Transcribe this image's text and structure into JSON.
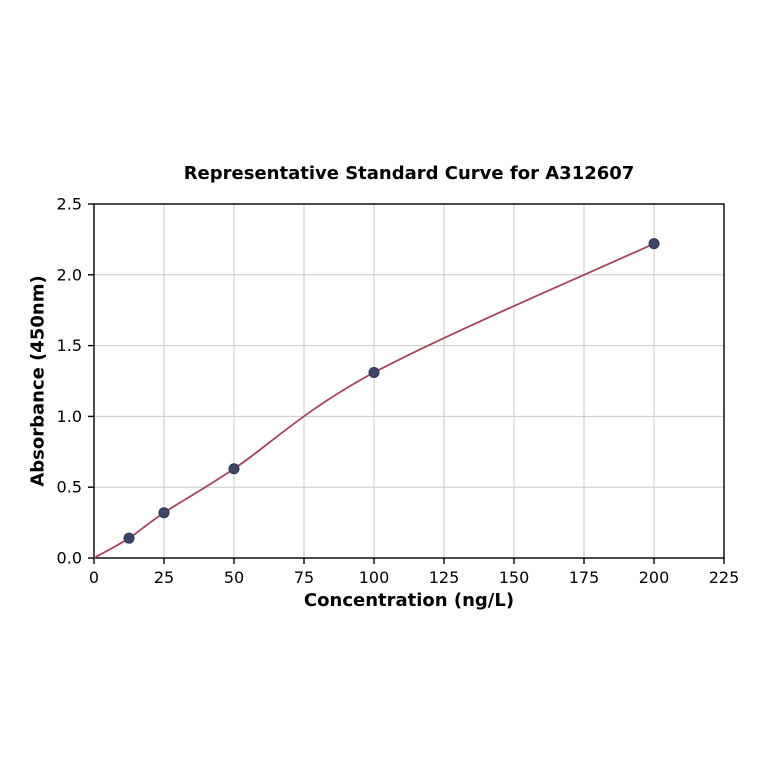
{
  "chart_data": {
    "type": "scatter",
    "title": "Representative Standard Curve for A312607",
    "xlabel": "Concentration (ng/L)",
    "ylabel": "Absorbance (450nm)",
    "xlim": [
      0,
      225
    ],
    "ylim": [
      0,
      2.5
    ],
    "grid": true,
    "legend": "none",
    "xticks": [
      0,
      25,
      50,
      75,
      100,
      125,
      150,
      175,
      200,
      225
    ],
    "xtick_labels": [
      "0",
      "25",
      "50",
      "75",
      "100",
      "125",
      "150",
      "175",
      "200",
      "225"
    ],
    "yticks": [
      0.0,
      0.5,
      1.0,
      1.5,
      2.0,
      2.5
    ],
    "ytick_labels": [
      "0.0",
      "0.5",
      "1.0",
      "1.5",
      "2.0",
      "2.5"
    ],
    "points": {
      "x": [
        12.5,
        25,
        50,
        100,
        200
      ],
      "y": [
        0.14,
        0.32,
        0.63,
        1.31,
        2.22
      ]
    },
    "curve": {
      "x": [
        0,
        12.5,
        25,
        50,
        100,
        200
      ],
      "y": [
        0.0,
        0.14,
        0.32,
        0.63,
        1.31,
        2.22
      ]
    },
    "colors": {
      "point": "#3f4566",
      "point_edge": "#2c3150",
      "line": "#a04658",
      "grid": "#c9c9c9",
      "axis": "#000000"
    }
  }
}
